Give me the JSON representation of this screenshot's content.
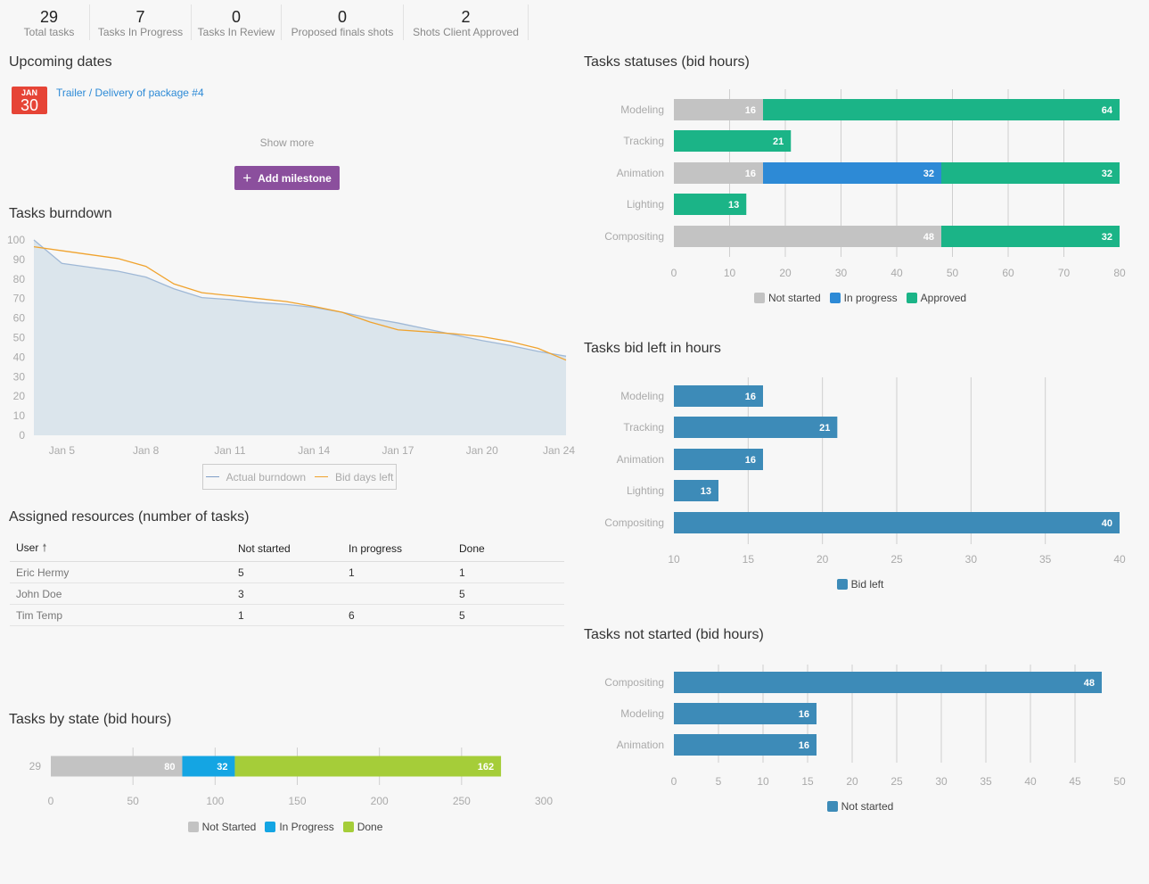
{
  "header_stats": [
    {
      "value": "29",
      "label": "Total tasks"
    },
    {
      "value": "7",
      "label": "Tasks In Progress"
    },
    {
      "value": "0",
      "label": "Tasks In Review"
    },
    {
      "value": "0",
      "label": "Proposed finals shots"
    },
    {
      "value": "2",
      "label": "Shots Client Approved"
    }
  ],
  "upcoming": {
    "title": "Upcoming dates",
    "milestones": [
      {
        "month": "JAN",
        "day": "30",
        "label": "Trailer / Delivery of package #4"
      }
    ],
    "show_more": "Show more",
    "add_milestone": "Add milestone",
    "add_icon": "+"
  },
  "resources": {
    "title": "Assigned resources (number of tasks)",
    "columns": [
      "User",
      "Not started",
      "In progress",
      "Done"
    ],
    "sort_icon": "🠕",
    "rows": [
      [
        "Eric Hermy",
        "5",
        "1",
        "1"
      ],
      [
        "John Doe",
        "3",
        "",
        "5"
      ],
      [
        "Tim Temp",
        "1",
        "6",
        "5"
      ]
    ]
  },
  "colors": {
    "accent_link": "#2d8ad6",
    "milestone_badge": "#e64436",
    "add_button": "#8b4f9d"
  },
  "chart_data": [
    {
      "type": "area",
      "title": "Tasks burndown",
      "x_day": [
        4,
        5,
        6,
        7,
        8,
        9,
        10,
        11,
        12,
        13,
        14,
        15,
        16,
        17,
        18,
        19,
        20,
        21,
        22,
        24
      ],
      "x_tick_days": [
        5,
        8,
        11,
        14,
        17,
        20,
        24
      ],
      "x_tick_labels": [
        "Jan 5",
        "Jan 8",
        "Jan 11",
        "Jan 14",
        "Jan 17",
        "Jan 20",
        "Jan 24"
      ],
      "ylim": [
        0,
        100
      ],
      "yticks": [
        0,
        10,
        20,
        30,
        40,
        50,
        60,
        70,
        80,
        90,
        100
      ],
      "grid": false,
      "legend": "bottom",
      "series": [
        {
          "name": "Actual burndown",
          "color": "#9fb8d6",
          "fill": "#dbe5ec",
          "values": [
            100,
            88,
            86,
            84,
            81,
            75,
            70.5,
            69.5,
            68,
            67,
            65.5,
            63,
            60,
            57.5,
            54.5,
            51.5,
            48.5,
            46,
            43,
            40.5
          ]
        },
        {
          "name": "Bid days left",
          "color": "#f0a32e",
          "values": [
            96.5,
            94.5,
            92.5,
            90.5,
            86.5,
            77.5,
            73,
            71.5,
            70,
            68.5,
            66,
            63,
            58,
            54,
            53,
            52,
            50.5,
            48,
            44.5,
            38.5
          ]
        }
      ]
    },
    {
      "type": "bar",
      "orientation": "horizontal",
      "stacked": true,
      "title": "Tasks by state (bid hours)",
      "categories": [
        "29"
      ],
      "xlim": [
        0,
        300
      ],
      "xticks": [
        0,
        50,
        100,
        150,
        200,
        250,
        300
      ],
      "legend": "bottom",
      "series": [
        {
          "name": "Not Started",
          "color": "#c3c3c3",
          "values": [
            80
          ]
        },
        {
          "name": "In Progress",
          "color": "#14a5e3",
          "values": [
            32
          ]
        },
        {
          "name": "Done",
          "color": "#a5cd39",
          "values": [
            162
          ]
        }
      ]
    },
    {
      "type": "bar",
      "orientation": "horizontal",
      "stacked": true,
      "title": "Tasks statuses (bid hours)",
      "categories": [
        "Modeling",
        "Tracking",
        "Animation",
        "Lighting",
        "Compositing"
      ],
      "xlim": [
        0,
        80
      ],
      "xticks": [
        0,
        10,
        20,
        30,
        40,
        50,
        60,
        70,
        80
      ],
      "legend": "bottom",
      "series": [
        {
          "name": "Not started",
          "color": "#c3c3c3",
          "values": [
            16,
            0,
            16,
            0,
            48
          ]
        },
        {
          "name": "In progress",
          "color": "#2d8ad6",
          "values": [
            0,
            0,
            32,
            0,
            0
          ]
        },
        {
          "name": "Approved",
          "color": "#1bb487",
          "values": [
            64,
            21,
            32,
            13,
            32
          ]
        }
      ]
    },
    {
      "type": "bar",
      "orientation": "horizontal",
      "stacked": false,
      "title": "Tasks bid left in hours",
      "categories": [
        "Modeling",
        "Tracking",
        "Animation",
        "Lighting",
        "Compositing"
      ],
      "xlim": [
        10,
        40
      ],
      "xticks": [
        10,
        15,
        20,
        25,
        30,
        35,
        40
      ],
      "legend": "bottom",
      "series": [
        {
          "name": "Bid left",
          "color": "#3d8bb8",
          "values": [
            16,
            21,
            16,
            13,
            40
          ]
        }
      ]
    },
    {
      "type": "bar",
      "orientation": "horizontal",
      "stacked": false,
      "title": "Tasks not started (bid hours)",
      "categories": [
        "Compositing",
        "Modeling",
        "Animation"
      ],
      "xlim": [
        0,
        50
      ],
      "xticks": [
        0,
        5,
        10,
        15,
        20,
        25,
        30,
        35,
        40,
        45,
        50
      ],
      "legend": "bottom",
      "series": [
        {
          "name": "Not started",
          "color": "#3d8bb8",
          "values": [
            48,
            16,
            16
          ]
        }
      ]
    }
  ]
}
